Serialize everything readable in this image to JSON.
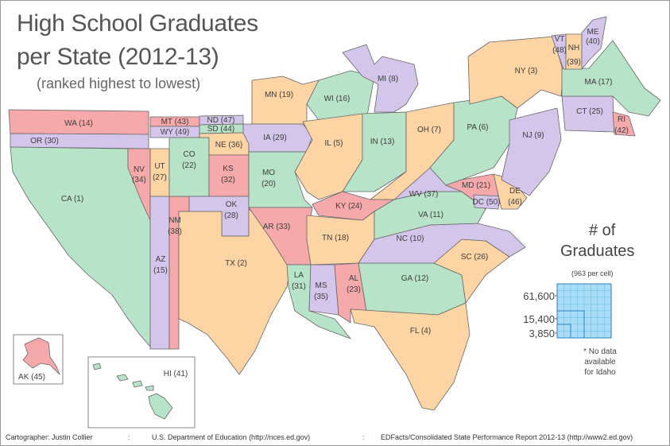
{
  "title_line1": "High School Graduates",
  "title_line2": "per State (2012-13)",
  "subtitle": "(ranked highest to lowest)",
  "legend": {
    "heading1": "# of",
    "heading2": "Graduates",
    "note": "(963 per cell)",
    "values": [
      "61,600",
      "15,400",
      "3,850"
    ],
    "no_data": "* No data available for Idaho"
  },
  "colors": {
    "green": "#b7e3c9",
    "orange": "#fdd5a4",
    "purple": "#d4c6ea",
    "red": "#f6a9aa",
    "legend_cell": "#a9dcf6",
    "legend_border": "#2a7fc1"
  },
  "states": [
    {
      "id": "WA",
      "label": "WA (14)",
      "rank": 14,
      "color": "red"
    },
    {
      "id": "OR",
      "label": "OR (30)",
      "rank": 30,
      "color": "purple"
    },
    {
      "id": "CA",
      "label": "CA (1)",
      "rank": 1,
      "color": "green"
    },
    {
      "id": "NV",
      "label": "NV",
      "rank_label": "(34)",
      "rank": 34,
      "color": "red"
    },
    {
      "id": "AZ",
      "label": "AZ",
      "rank_label": "(15)",
      "rank": 15,
      "color": "purple"
    },
    {
      "id": "UT",
      "label": "UT",
      "rank_label": "(27)",
      "rank": 27,
      "color": "orange"
    },
    {
      "id": "MT",
      "label": "MT (43)",
      "rank": 43,
      "color": "red"
    },
    {
      "id": "WY",
      "label": "WY (49)",
      "rank": 49,
      "color": "purple"
    },
    {
      "id": "CO",
      "label": "CO",
      "rank_label": "(22)",
      "rank": 22,
      "color": "green"
    },
    {
      "id": "NM",
      "label": "NM",
      "rank_label": "(38)",
      "rank": 38,
      "color": "red"
    },
    {
      "id": "ND",
      "label": "ND (47)",
      "rank": 47,
      "color": "purple"
    },
    {
      "id": "SD",
      "label": "SD (44)",
      "rank": 44,
      "color": "green"
    },
    {
      "id": "NE",
      "label": "NE (36)",
      "rank": 36,
      "color": "orange"
    },
    {
      "id": "KS",
      "label": "KS",
      "rank_label": "(32)",
      "rank": 32,
      "color": "red"
    },
    {
      "id": "OK",
      "label": "OK",
      "rank_label": "(28)",
      "rank": 28,
      "color": "purple"
    },
    {
      "id": "TX",
      "label": "TX (2)",
      "rank": 2,
      "color": "orange"
    },
    {
      "id": "MN",
      "label": "MN (19)",
      "rank": 19,
      "color": "orange"
    },
    {
      "id": "IA",
      "label": "IA (29)",
      "rank": 29,
      "color": "purple"
    },
    {
      "id": "MO",
      "label": "MO",
      "rank_label": "(20)",
      "rank": 20,
      "color": "green"
    },
    {
      "id": "AR",
      "label": "AR (33)",
      "rank": 33,
      "color": "red"
    },
    {
      "id": "LA",
      "label": "LA",
      "rank_label": "(31)",
      "rank": 31,
      "color": "green"
    },
    {
      "id": "WI",
      "label": "WI (16)",
      "rank": 16,
      "color": "green"
    },
    {
      "id": "IL",
      "label": "IL (5)",
      "rank": 5,
      "color": "orange"
    },
    {
      "id": "MI",
      "label": "MI (8)",
      "rank": 8,
      "color": "purple"
    },
    {
      "id": "IN",
      "label": "IN (13)",
      "rank": 13,
      "color": "green"
    },
    {
      "id": "OH",
      "label": "OH (7)",
      "rank": 7,
      "color": "orange"
    },
    {
      "id": "KY",
      "label": "KY (24)",
      "rank": 24,
      "color": "red"
    },
    {
      "id": "TN",
      "label": "TN (18)",
      "rank": 18,
      "color": "orange"
    },
    {
      "id": "MS",
      "label": "MS",
      "rank_label": "(35)",
      "rank": 35,
      "color": "purple"
    },
    {
      "id": "AL",
      "label": "AL",
      "rank_label": "(23)",
      "rank": 23,
      "color": "red"
    },
    {
      "id": "GA",
      "label": "GA (12)",
      "rank": 12,
      "color": "green"
    },
    {
      "id": "FL",
      "label": "FL (4)",
      "rank": 4,
      "color": "orange"
    },
    {
      "id": "SC",
      "label": "SC (26)",
      "rank": 26,
      "color": "orange"
    },
    {
      "id": "NC",
      "label": "NC (10)",
      "rank": 10,
      "color": "purple"
    },
    {
      "id": "VA",
      "label": "VA (11)",
      "rank": 11,
      "color": "green"
    },
    {
      "id": "WV",
      "label": "WV (37)",
      "rank": 37,
      "color": "purple"
    },
    {
      "id": "PA",
      "label": "PA (6)",
      "rank": 6,
      "color": "green"
    },
    {
      "id": "MD",
      "label": "MD (21)",
      "rank": 21,
      "color": "red"
    },
    {
      "id": "DC",
      "label": "DC (50)",
      "rank": 50,
      "color": "purple"
    },
    {
      "id": "DE",
      "label": "DE",
      "rank_label": "(46)",
      "rank": 46,
      "color": "orange"
    },
    {
      "id": "NJ",
      "label": "NJ (9)",
      "rank": 9,
      "color": "purple"
    },
    {
      "id": "NY",
      "label": "NY (3)",
      "rank": 3,
      "color": "orange"
    },
    {
      "id": "CT",
      "label": "CT (25)",
      "rank": 25,
      "color": "purple"
    },
    {
      "id": "RI",
      "label": "RI",
      "rank_label": "(42)",
      "rank": 42,
      "color": "red"
    },
    {
      "id": "MA",
      "label": "MA (17)",
      "rank": 17,
      "color": "green"
    },
    {
      "id": "VT",
      "label": "VT",
      "rank_label": "(48)",
      "rank": 48,
      "color": "purple"
    },
    {
      "id": "NH",
      "label": "NH",
      "rank_label": "(39)",
      "rank": 39,
      "color": "orange"
    },
    {
      "id": "ME",
      "label": "ME",
      "rank_label": "(40)",
      "rank": 40,
      "color": "purple"
    },
    {
      "id": "AK",
      "label": "AK (45)",
      "rank": 45,
      "color": "red"
    },
    {
      "id": "HI",
      "label": "HI (41)",
      "rank": 41,
      "color": "green"
    }
  ],
  "footer": {
    "cartographer": "Cartographer: Justin Collier",
    "source1": "U.S. Department of Education (http://nces.ed.gov)",
    "source2": "EDFacts/Consolidated State Performance Report 2012-13 (http://www2.ed.gov)",
    "separator": ":"
  }
}
